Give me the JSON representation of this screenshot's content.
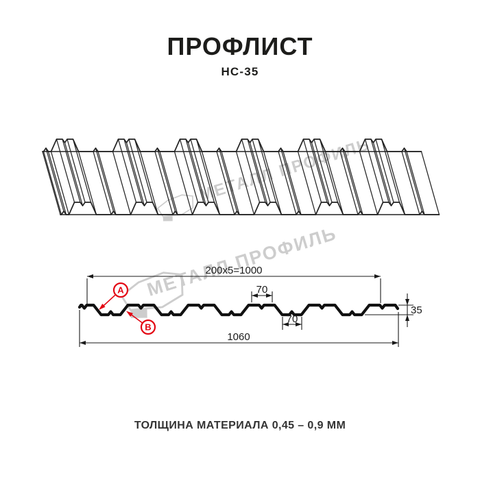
{
  "header": {
    "title": "ПРОФЛИСТ",
    "subtitle": "НС-35"
  },
  "watermark": {
    "text": "МЕТАЛЛ ПРОФИЛЬ"
  },
  "section": {
    "dim_coverage": "200x5=1000",
    "dim_top_flange": "70",
    "dim_bottom_flange": "70",
    "dim_height": "35",
    "dim_overall": "1060",
    "label_a": "A",
    "label_b": "B"
  },
  "footer": {
    "text": "ТОЛЩИНА МАТЕРИАЛА 0,45 – 0,9 ММ"
  },
  "colors": {
    "accent_red": "#e30613",
    "line": "#1a1a1a",
    "watermark_gray": "#cdcdcd"
  }
}
